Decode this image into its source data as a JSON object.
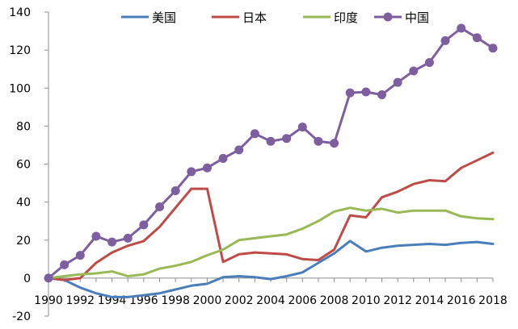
{
  "chart_data": {
    "type": "line",
    "title": "",
    "xlabel": "",
    "ylabel": "",
    "x": [
      1990,
      1991,
      1992,
      1993,
      1994,
      1995,
      1996,
      1997,
      1998,
      1999,
      2000,
      2001,
      2002,
      2003,
      2004,
      2005,
      2006,
      2007,
      2008,
      2009,
      2010,
      2011,
      2012,
      2013,
      2014,
      2015,
      2016,
      2017,
      2018
    ],
    "x_tick_labels": [
      "1990",
      "1992",
      "1994",
      "1996",
      "1998",
      "2000",
      "2002",
      "2004",
      "2006",
      "2008",
      "2010",
      "2012",
      "2014",
      "2016",
      "2018"
    ],
    "ylim": [
      -20,
      140
    ],
    "y_tick_labels": [
      "-20",
      "0",
      "20",
      "40",
      "60",
      "80",
      "100",
      "120",
      "140"
    ],
    "grid": false,
    "legend_position": "top",
    "series": [
      {
        "name": "美国",
        "color": "#4a7ebb",
        "marker": false,
        "values": [
          0,
          -1,
          -5,
          -8,
          -10,
          -10,
          -9,
          -8,
          -6,
          -4,
          -3,
          0.5,
          1,
          0.5,
          -0.5,
          1,
          3,
          8,
          13,
          19.5,
          14,
          16,
          17,
          17.5,
          18,
          17.5,
          18.5,
          19,
          18
        ]
      },
      {
        "name": "日本",
        "color": "#be4b48",
        "marker": false,
        "values": [
          0,
          -1,
          0,
          8,
          13.5,
          17,
          19.5,
          27,
          37,
          47,
          47,
          8.5,
          12.5,
          13.5,
          13,
          12.5,
          10,
          9.5,
          15,
          33,
          32,
          42.5,
          45.5,
          49.5,
          51.5,
          51,
          58,
          62,
          66
        ]
      },
      {
        "name": "印度",
        "color": "#98b954",
        "marker": false,
        "values": [
          0,
          1,
          2,
          2.5,
          3.5,
          1,
          2,
          5,
          6.5,
          8.5,
          12,
          15,
          20,
          21,
          22,
          23,
          26,
          30,
          35,
          37,
          35.5,
          36.5,
          34.5,
          35.5,
          35.5,
          35.5,
          32.5,
          31.5,
          31
        ]
      },
      {
        "name": "中国",
        "color": "#7d5fa0",
        "marker": true,
        "values": [
          0,
          7,
          12,
          22,
          19,
          21,
          28,
          37.5,
          46,
          56,
          58,
          63,
          67.5,
          76,
          72,
          73.5,
          79.5,
          72,
          71,
          97.5,
          98,
          96.5,
          103,
          109,
          113.5,
          125,
          131.5,
          126.5,
          121
        ]
      }
    ]
  }
}
